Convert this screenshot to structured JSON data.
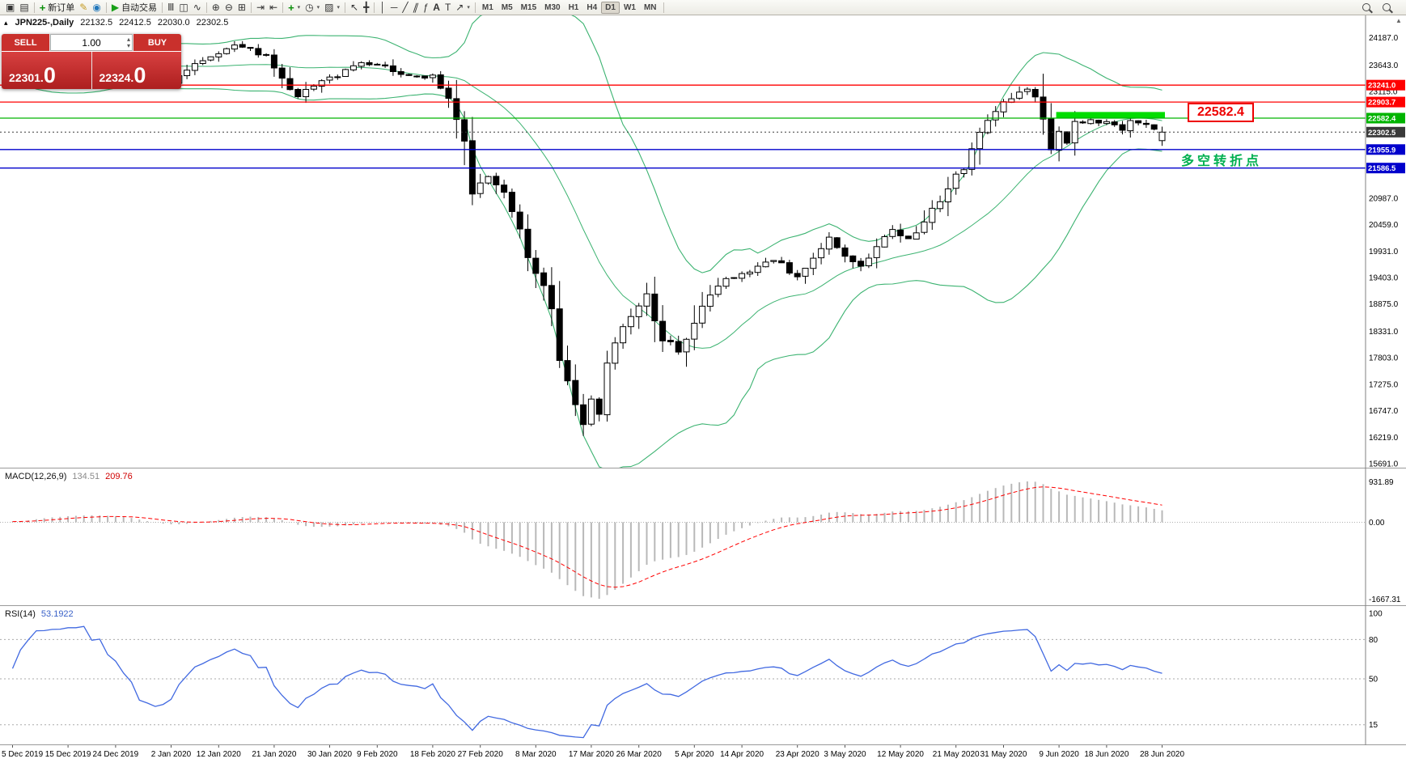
{
  "toolbar": {
    "items": [
      {
        "type": "icon",
        "name": "new-chart-icon"
      },
      {
        "type": "icon",
        "name": "profiles-icon"
      },
      {
        "type": "sep"
      },
      {
        "type": "button",
        "name": "new-order-button",
        "icon": "new-order-icon",
        "label": "新订单"
      },
      {
        "type": "icon",
        "name": "metaeditor-icon"
      },
      {
        "type": "icon",
        "name": "mql5-community-icon"
      },
      {
        "type": "sep"
      },
      {
        "type": "button",
        "name": "autotrading-button",
        "icon": "autotrading-icon",
        "label": "自动交易"
      },
      {
        "type": "sep"
      },
      {
        "type": "icon",
        "name": "bar-chart-icon"
      },
      {
        "type": "icon",
        "name": "candlestick-chart-icon"
      },
      {
        "type": "icon",
        "name": "line-chart-icon"
      },
      {
        "type": "sep"
      },
      {
        "type": "icon",
        "name": "zoom-in-icon"
      },
      {
        "type": "icon",
        "name": "zoom-out-icon"
      },
      {
        "type": "icon",
        "name": "tile-windows-icon"
      },
      {
        "type": "sep"
      },
      {
        "type": "icon",
        "name": "auto-scroll-icon"
      },
      {
        "type": "icon",
        "name": "chart-shift-icon"
      },
      {
        "type": "sep"
      },
      {
        "type": "icon",
        "name": "indicators-icon",
        "dropdown": true
      },
      {
        "type": "icon",
        "name": "periods-icon",
        "dropdown": true
      },
      {
        "type": "icon",
        "name": "templates-icon",
        "dropdown": true
      },
      {
        "type": "sep"
      },
      {
        "type": "icon",
        "name": "cursor-icon"
      },
      {
        "type": "icon",
        "name": "crosshair-icon"
      },
      {
        "type": "sep"
      },
      {
        "type": "icon",
        "name": "vertical-line-icon"
      },
      {
        "type": "icon",
        "name": "horizontal-line-icon"
      },
      {
        "type": "icon",
        "name": "trendline-icon"
      },
      {
        "type": "icon",
        "name": "channel-icon"
      },
      {
        "type": "icon",
        "name": "fibonacci-icon"
      },
      {
        "type": "icon",
        "name": "text-icon"
      },
      {
        "type": "icon",
        "name": "label-icon"
      },
      {
        "type": "icon",
        "name": "arrows-icon",
        "dropdown": true
      },
      {
        "type": "sep"
      }
    ],
    "timeframes": [
      "M1",
      "M5",
      "M15",
      "M30",
      "H1",
      "H4",
      "D1",
      "W1",
      "MN"
    ],
    "active_timeframe": "D1",
    "right_icons": [
      {
        "name": "search-icon"
      },
      {
        "name": "zoom-search-icon"
      }
    ]
  },
  "symbol_info": {
    "title": "JPN225-,Daily",
    "open": "22132.5",
    "high": "22412.5",
    "low": "22030.0",
    "close": "22302.5"
  },
  "trade_panel": {
    "sell_label": "SELL",
    "buy_label": "BUY",
    "volume": "1.00",
    "sell_price_main": "22301.",
    "sell_price_big": "0",
    "buy_price_main": "22324.",
    "buy_price_big": "0"
  },
  "annotations": {
    "price_callout": "22582.4",
    "turning_point_text": "多空转折点"
  },
  "chart_data": [
    {
      "type": "candlestick",
      "title": "JPN225- Daily with Bollinger Bands",
      "last_ohlc": {
        "open": 22132.5,
        "high": 22412.5,
        "low": 22030.0,
        "close": 22302.5
      },
      "y_axis_ticks": [
        24187.0,
        23643.0,
        23115.0,
        20987.0,
        20459.0,
        19931.0,
        19403.0,
        18875.0,
        18331.0,
        17803.0,
        17275.0,
        16747.0,
        16219.0,
        15691.0
      ],
      "y_range": [
        15610,
        24632
      ],
      "x_tick_labels": [
        "5 Dec 2019",
        "15 Dec 2019",
        "24 Dec 2019",
        "2 Jan 2020",
        "12 Jan 2020",
        "21 Jan 2020",
        "30 Jan 2020",
        "9 Feb 2020",
        "18 Feb 2020",
        "27 Feb 2020",
        "8 Mar 2020",
        "17 Mar 2020",
        "26 Mar 2020",
        "5 Apr 2020",
        "14 Apr 2020",
        "23 Apr 2020",
        "3 May 2020",
        "12 May 2020",
        "21 May 2020",
        "31 May 2020",
        "9 Jun 2020",
        "18 Jun 2020",
        "28 Jun 2020"
      ],
      "levels": [
        {
          "price": 23241.0,
          "label": "23241.0",
          "color": "#ff0000",
          "type": "resistance"
        },
        {
          "price": 22903.7,
          "label": "22903.7",
          "color": "#ff0000",
          "type": "resistance"
        },
        {
          "price": 22582.4,
          "label": "22582.4",
          "color": "#00b400",
          "type": "key-level"
        },
        {
          "price": 22302.5,
          "label": "22302.5",
          "color": "#3a3a3a",
          "type": "bid"
        },
        {
          "price": 21955.9,
          "label": "21955.9",
          "color": "#0000cc",
          "type": "support"
        },
        {
          "price": 21586.5,
          "label": "21586.5",
          "color": "#0000cc",
          "type": "support"
        }
      ],
      "rectangle": {
        "from_index": 132,
        "to_index": 145,
        "price_top": 22705,
        "price_bottom": 22585,
        "color": "#00dd00"
      },
      "bollinger": {
        "period": 20,
        "deviation": 2,
        "color": "#3cb371"
      },
      "candle_count": 146,
      "close_path": [
        [
          0,
          23350
        ],
        [
          3,
          23740
        ],
        [
          6,
          23810
        ],
        [
          9,
          23870
        ],
        [
          12,
          23790
        ],
        [
          14,
          23650
        ],
        [
          16,
          23390
        ],
        [
          18,
          23230
        ],
        [
          20,
          23320
        ],
        [
          23,
          23680
        ],
        [
          26,
          23900
        ],
        [
          28,
          24040
        ],
        [
          30,
          23950
        ],
        [
          32,
          23790
        ],
        [
          34,
          23350
        ],
        [
          36,
          23020
        ],
        [
          38,
          23240
        ],
        [
          41,
          23450
        ],
        [
          44,
          23690
        ],
        [
          47,
          23590
        ],
        [
          50,
          23420
        ],
        [
          53,
          23390
        ],
        [
          55,
          22880
        ],
        [
          57,
          22310
        ],
        [
          58,
          21140
        ],
        [
          60,
          21400
        ],
        [
          62,
          21080
        ],
        [
          64,
          20250
        ],
        [
          65,
          19700
        ],
        [
          67,
          19350
        ],
        [
          68,
          18560
        ],
        [
          70,
          17250
        ],
        [
          72,
          16480
        ],
        [
          73,
          17000
        ],
        [
          74,
          16730
        ],
        [
          75,
          17820
        ],
        [
          76,
          18090
        ],
        [
          78,
          18590
        ],
        [
          80,
          19080
        ],
        [
          82,
          18230
        ],
        [
          84,
          17900
        ],
        [
          86,
          18580
        ],
        [
          88,
          19100
        ],
        [
          90,
          19350
        ],
        [
          93,
          19550
        ],
        [
          96,
          19750
        ],
        [
          99,
          19430
        ],
        [
          101,
          19850
        ],
        [
          103,
          20190
        ],
        [
          105,
          19880
        ],
        [
          107,
          19620
        ],
        [
          109,
          20040
        ],
        [
          111,
          20390
        ],
        [
          113,
          20180
        ],
        [
          115,
          20550
        ],
        [
          117,
          20940
        ],
        [
          119,
          21370
        ],
        [
          121,
          21920
        ],
        [
          123,
          22500
        ],
        [
          125,
          22870
        ],
        [
          127,
          23120
        ],
        [
          128,
          23180
        ],
        [
          130,
          22710
        ],
        [
          131,
          21950
        ],
        [
          132,
          22350
        ],
        [
          133,
          22100
        ],
        [
          134,
          22450
        ],
        [
          136,
          22550
        ],
        [
          138,
          22480
        ],
        [
          140,
          22340
        ],
        [
          141,
          22520
        ],
        [
          143,
          22420
        ],
        [
          145,
          22302.5
        ]
      ]
    },
    {
      "type": "macd",
      "label": "MACD(12,26,9)",
      "value_main": "134.51",
      "value_signal": "209.76",
      "params": {
        "fast": 12,
        "slow": 26,
        "signal": 9
      },
      "axis_labels": [
        "931.89",
        "0.00",
        "-1667.31"
      ],
      "histogram_color": "#b8b8b8",
      "signal_color": "#ff0000"
    },
    {
      "type": "rsi",
      "label": "RSI(14)",
      "value": "53.1922",
      "period": 14,
      "axis_labels": [
        "100",
        "80",
        "50",
        "15"
      ],
      "levels": [
        80,
        50,
        15
      ],
      "line_color": "#4169e1"
    }
  ]
}
